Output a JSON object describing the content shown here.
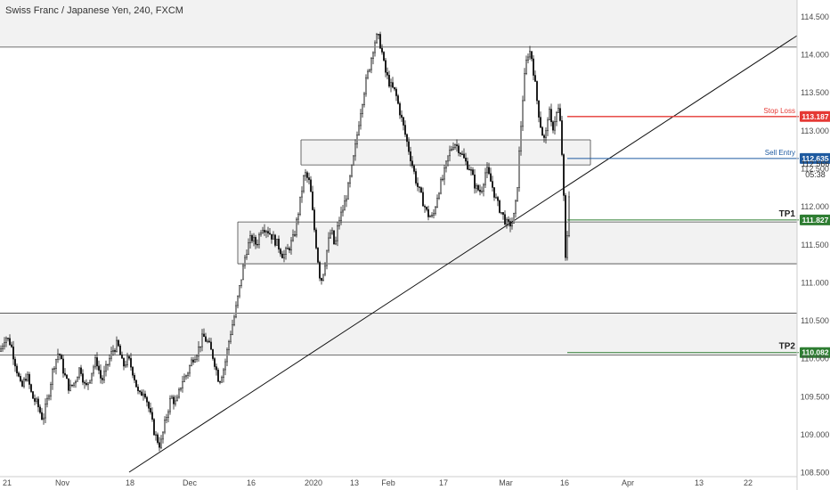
{
  "header": {
    "title": "Swiss Franc / Japanese Yen, 240, FXCM"
  },
  "chart_data": {
    "type": "candlestick",
    "title": "Swiss Franc / Japanese Yen, 240, FXCM",
    "ylim": [
      108.45,
      114.72
    ],
    "y_ticks": [
      "114.500",
      "114.000",
      "113.500",
      "113.000",
      "112.500",
      "112.000",
      "111.500",
      "111.000",
      "110.500",
      "110.000",
      "109.500",
      "109.000",
      "108.500"
    ],
    "x_ticks": [
      "21",
      "Nov",
      "18",
      "Dec",
      "16",
      "2020",
      "13",
      "Feb",
      "17",
      "Mar",
      "16",
      "Apr",
      "13",
      "22"
    ],
    "grid": false,
    "price_path": [
      [
        0,
        110.1
      ],
      [
        6,
        110.3
      ],
      [
        12,
        110.2
      ],
      [
        18,
        109.9
      ],
      [
        24,
        109.6
      ],
      [
        30,
        109.8
      ],
      [
        36,
        109.5
      ],
      [
        42,
        109.4
      ],
      [
        48,
        109.2
      ],
      [
        54,
        109.5
      ],
      [
        60,
        109.9
      ],
      [
        66,
        110.1
      ],
      [
        72,
        109.8
      ],
      [
        78,
        109.6
      ],
      [
        84,
        109.7
      ],
      [
        90,
        109.9
      ],
      [
        96,
        109.6
      ],
      [
        102,
        109.8
      ],
      [
        108,
        110.0
      ],
      [
        114,
        109.7
      ],
      [
        120,
        109.9
      ],
      [
        126,
        110.1
      ],
      [
        132,
        110.2
      ],
      [
        138,
        109.9
      ],
      [
        144,
        110.0
      ],
      [
        150,
        109.8
      ],
      [
        156,
        109.5
      ],
      [
        162,
        109.6
      ],
      [
        168,
        109.3
      ],
      [
        174,
        109.0
      ],
      [
        180,
        108.85
      ],
      [
        186,
        109.2
      ],
      [
        192,
        109.5
      ],
      [
        198,
        109.4
      ],
      [
        204,
        109.7
      ],
      [
        210,
        109.8
      ],
      [
        216,
        110.0
      ],
      [
        222,
        110.1
      ],
      [
        228,
        110.3
      ],
      [
        234,
        110.2
      ],
      [
        240,
        110.0
      ],
      [
        246,
        109.7
      ],
      [
        252,
        109.9
      ],
      [
        258,
        110.3
      ],
      [
        264,
        110.6
      ],
      [
        270,
        111.0
      ],
      [
        276,
        111.4
      ],
      [
        282,
        111.6
      ],
      [
        288,
        111.5
      ],
      [
        294,
        111.75
      ],
      [
        300,
        111.7
      ],
      [
        306,
        111.6
      ],
      [
        312,
        111.5
      ],
      [
        318,
        111.35
      ],
      [
        324,
        111.45
      ],
      [
        330,
        111.6
      ],
      [
        336,
        112.0
      ],
      [
        342,
        112.45
      ],
      [
        348,
        112.3
      ],
      [
        352,
        111.8
      ],
      [
        356,
        111.4
      ],
      [
        360,
        111.0
      ],
      [
        364,
        111.2
      ],
      [
        368,
        111.5
      ],
      [
        372,
        111.7
      ],
      [
        376,
        111.45
      ],
      [
        380,
        111.8
      ],
      [
        386,
        112.0
      ],
      [
        392,
        112.3
      ],
      [
        398,
        112.7
      ],
      [
        404,
        113.2
      ],
      [
        410,
        113.6
      ],
      [
        416,
        113.9
      ],
      [
        420,
        114.15
      ],
      [
        424,
        114.25
      ],
      [
        428,
        114.1
      ],
      [
        432,
        113.8
      ],
      [
        438,
        113.6
      ],
      [
        444,
        113.5
      ],
      [
        450,
        113.2
      ],
      [
        456,
        112.9
      ],
      [
        462,
        112.6
      ],
      [
        468,
        112.3
      ],
      [
        474,
        112.1
      ],
      [
        480,
        111.9
      ],
      [
        486,
        111.85
      ],
      [
        492,
        112.2
      ],
      [
        498,
        112.4
      ],
      [
        504,
        112.7
      ],
      [
        510,
        112.85
      ],
      [
        516,
        112.75
      ],
      [
        522,
        112.6
      ],
      [
        528,
        112.5
      ],
      [
        534,
        112.25
      ],
      [
        540,
        112.2
      ],
      [
        546,
        112.5
      ],
      [
        552,
        112.3
      ],
      [
        558,
        112.05
      ],
      [
        564,
        111.9
      ],
      [
        570,
        111.75
      ],
      [
        576,
        111.8
      ],
      [
        580,
        112.1
      ],
      [
        584,
        112.9
      ],
      [
        588,
        113.6
      ],
      [
        592,
        114.0
      ],
      [
        596,
        114.05
      ],
      [
        600,
        113.7
      ],
      [
        604,
        113.3
      ],
      [
        608,
        113.0
      ],
      [
        612,
        112.85
      ],
      [
        616,
        113.3
      ],
      [
        620,
        113.0
      ],
      [
        624,
        113.2
      ],
      [
        628,
        113.3
      ],
      [
        632,
        112.5
      ],
      [
        635,
        111.3
      ],
      [
        638,
        111.8
      ],
      [
        640,
        112.55
      ]
    ],
    "annotations": {
      "stop_loss": {
        "label": "Stop Loss",
        "price": "113.187",
        "color": "#e53935"
      },
      "sell_entry": {
        "label": "Sell Entry",
        "price": "112.635",
        "color": "#1e5aa0"
      },
      "tp1": {
        "label": "TP1",
        "price": "111.827",
        "color": "#2e7d32"
      },
      "tp2": {
        "label": "TP2",
        "price": "110.082",
        "color": "#2e7d32"
      },
      "current_price": "112.566",
      "countdown": "05:38"
    },
    "zones": [
      {
        "name": "resistance-zone-top",
        "y1": 114.1,
        "y2": 114.75
      },
      {
        "name": "supply-zone",
        "y1": 112.55,
        "y2": 112.88
      },
      {
        "name": "demand-zone",
        "y1": 111.25,
        "y2": 111.8
      },
      {
        "name": "support-zone-bottom",
        "y1": 110.05,
        "y2": 110.6
      }
    ],
    "colors": {
      "candle": "#1a1a1a",
      "zone_fill": "#f2f2f2",
      "zone_line": "#444444",
      "trendline": "#111111",
      "axis_text": "#4a4a4a"
    }
  }
}
